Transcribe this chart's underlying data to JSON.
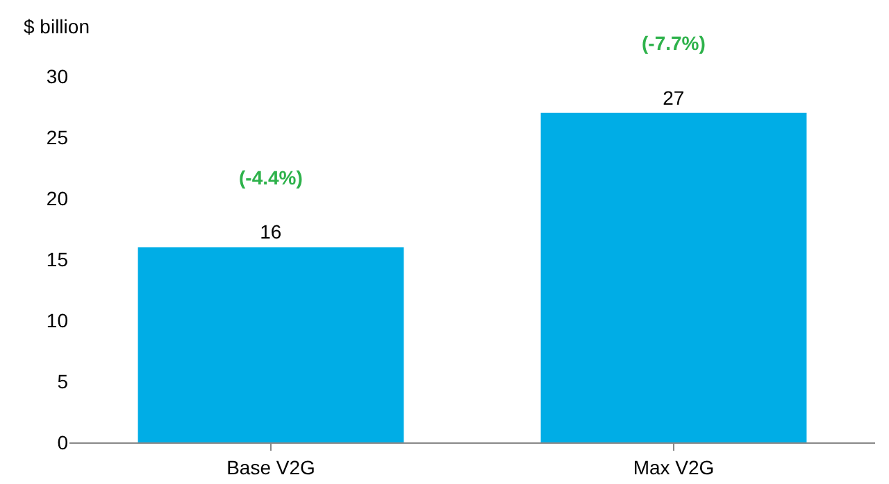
{
  "chart_data": {
    "type": "bar",
    "ylabel": "$ billion",
    "categories": [
      "Base V2G",
      "Max V2G"
    ],
    "values": [
      16,
      27
    ],
    "color": "#00ade6",
    "data_labels": true,
    "ylim": [
      0,
      30
    ],
    "yticks": [
      0,
      5,
      10,
      15,
      20,
      25,
      30
    ],
    "grid": false,
    "annotations": [
      "(-4.4%)",
      "(-7.7%)"
    ]
  }
}
